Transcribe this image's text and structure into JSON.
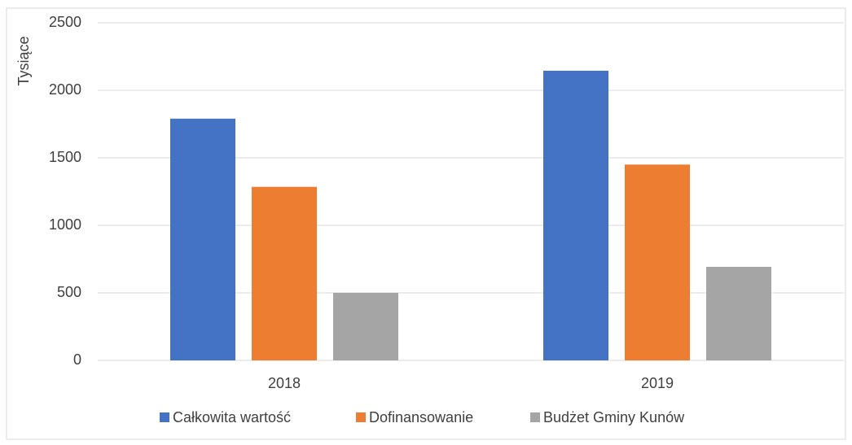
{
  "chart_data": {
    "type": "bar",
    "y_label": "Tysiące",
    "categories": [
      "2018",
      "2019"
    ],
    "series": [
      {
        "name": "Całkowita wartość",
        "color": "#4472c4",
        "values": [
          1790,
          2145
        ]
      },
      {
        "name": "Dofinansowanie",
        "color": "#ed7d31",
        "values": [
          1285,
          1450
        ]
      },
      {
        "name": "Budżet Gminy Kunów",
        "color": "#a5a5a5",
        "values": [
          500,
          693
        ]
      }
    ],
    "ylim": [
      0,
      2500
    ],
    "yticks": [
      0,
      500,
      1000,
      1500,
      2000,
      2500
    ],
    "grid": true,
    "legend": "bottom"
  }
}
